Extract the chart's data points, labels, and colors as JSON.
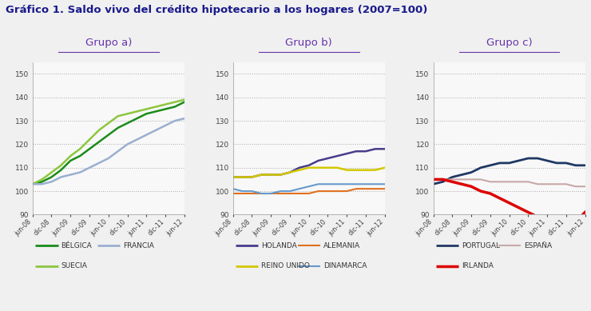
{
  "title": "Gráfico 1. Saldo vivo del crédito hipotecario a los hogares (2007=100)",
  "title_color": "#1a1a8c",
  "title_fontsize": 9.5,
  "xtick_labels": [
    "jun-08",
    "dic-08",
    "jun-09",
    "dic-09",
    "jun-10",
    "dic-10",
    "jun-11",
    "dic-11",
    "jun-12"
  ],
  "ylim": [
    90,
    155
  ],
  "yticks": [
    90,
    100,
    110,
    120,
    130,
    140,
    150
  ],
  "group_titles": [
    "Grupo a)",
    "Grupo b)",
    "Grupo c)"
  ],
  "group_title_color": "#6633aa",
  "group_a": {
    "belgica": [
      103,
      104,
      106,
      109,
      113,
      115,
      118,
      121,
      124,
      127,
      129,
      131,
      133,
      134,
      135,
      136,
      138
    ],
    "suecia": [
      103,
      105,
      108,
      111,
      115,
      118,
      122,
      126,
      129,
      132,
      133,
      134,
      135,
      136,
      137,
      138,
      139
    ],
    "francia": [
      103,
      103,
      104,
      106,
      107,
      108,
      110,
      112,
      114,
      117,
      120,
      122,
      124,
      126,
      128,
      130,
      131
    ]
  },
  "group_b": {
    "holanda": [
      106,
      106,
      106,
      107,
      107,
      107,
      108,
      110,
      111,
      113,
      114,
      115,
      116,
      117,
      117,
      118,
      118
    ],
    "alemania": [
      99,
      99,
      99,
      99,
      99,
      99,
      99,
      99,
      99,
      100,
      100,
      100,
      100,
      101,
      101,
      101,
      101
    ],
    "reino_unido": [
      106,
      106,
      106,
      107,
      107,
      107,
      108,
      109,
      110,
      110,
      110,
      110,
      109,
      109,
      109,
      109,
      110
    ],
    "dinamarca": [
      101,
      100,
      100,
      99,
      99,
      100,
      100,
      101,
      102,
      103,
      103,
      103,
      103,
      103,
      103,
      103,
      103
    ]
  },
  "group_c": {
    "portugal": [
      103,
      104,
      106,
      107,
      108,
      110,
      111,
      112,
      112,
      113,
      114,
      114,
      113,
      112,
      112,
      111,
      111
    ],
    "espana": [
      105,
      105,
      105,
      105,
      105,
      105,
      104,
      104,
      104,
      104,
      104,
      103,
      103,
      103,
      103,
      102,
      102
    ],
    "irlanda": [
      105,
      105,
      104,
      103,
      102,
      100,
      99,
      97,
      95,
      93,
      91,
      89,
      88,
      87,
      87,
      87,
      91
    ]
  },
  "colors": {
    "belgica": "#1a8c1a",
    "suecia": "#8dc63f",
    "francia": "#9bafd0",
    "holanda": "#483d8b",
    "alemania": "#e07020",
    "reino_unido": "#d4c800",
    "dinamarca": "#6699cc",
    "portugal": "#1f3864",
    "espana": "#c8a8a8",
    "irlanda": "#dd0000"
  },
  "linewidths": {
    "belgica": 1.8,
    "suecia": 1.8,
    "francia": 1.8,
    "holanda": 1.8,
    "alemania": 1.5,
    "reino_unido": 1.8,
    "dinamarca": 1.5,
    "portugal": 2.0,
    "espana": 1.5,
    "irlanda": 2.5
  },
  "legend_a": [
    {
      "label": "BÉLGICA",
      "color": "#1a8c1a",
      "lw": 2.0
    },
    {
      "label": "FRANCIA",
      "color": "#9bafd0",
      "lw": 2.0
    },
    {
      "label": "SUECIA",
      "color": "#8dc63f",
      "lw": 2.0
    }
  ],
  "legend_b": [
    {
      "label": "HOLANDA",
      "color": "#483d8b",
      "lw": 2.0
    },
    {
      "label": "ALEMANIA",
      "color": "#e07020",
      "lw": 1.5
    },
    {
      "label": "REINO UNIDO",
      "color": "#d4c800",
      "lw": 2.0
    },
    {
      "label": "DINAMARCA",
      "color": "#6699cc",
      "lw": 1.5
    }
  ],
  "legend_c": [
    {
      "label": "PORTUGAL",
      "color": "#1f3864",
      "lw": 2.0
    },
    {
      "label": "ESPAÑA",
      "color": "#c8a8a8",
      "lw": 1.5
    },
    {
      "label": "IRLANDA",
      "color": "#dd0000",
      "lw": 2.5
    }
  ],
  "bg_color": "#f0f0f0",
  "plot_bg": "#f8f8f8"
}
